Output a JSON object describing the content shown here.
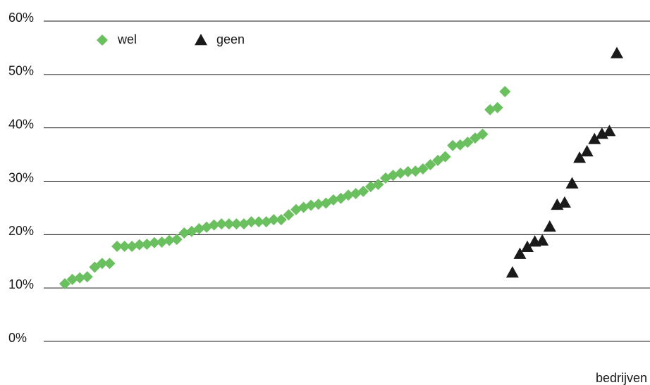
{
  "chart_data": {
    "type": "scatter",
    "x_label": "bedrijven",
    "ylim": [
      0,
      60
    ],
    "yticks": [
      {
        "value": 0,
        "label": "0%"
      },
      {
        "value": 10,
        "label": "10%"
      },
      {
        "value": 20,
        "label": "20%"
      },
      {
        "value": 30,
        "label": "30%"
      },
      {
        "value": 40,
        "label": "40%"
      },
      {
        "value": 50,
        "label": "50%"
      },
      {
        "value": 60,
        "label": "60%"
      }
    ],
    "grid": true,
    "legend": "top-left",
    "series": [
      {
        "name": "wel",
        "color": "#6abf5e",
        "marker": "diamond",
        "values": [
          10.8,
          11.6,
          11.9,
          12.1,
          13.9,
          14.6,
          14.6,
          17.8,
          17.8,
          17.8,
          18.1,
          18.2,
          18.5,
          18.6,
          18.9,
          19.1,
          20.3,
          20.6,
          21.1,
          21.4,
          21.8,
          22.0,
          22.0,
          22.0,
          22.0,
          22.4,
          22.4,
          22.4,
          22.8,
          22.8,
          23.7,
          24.7,
          25.1,
          25.5,
          25.7,
          25.9,
          26.5,
          26.8,
          27.4,
          27.7,
          28.1,
          29.0,
          29.4,
          30.6,
          31.1,
          31.5,
          31.8,
          31.9,
          32.3,
          33.1,
          33.9,
          34.6,
          36.7,
          36.8,
          37.3,
          38.1,
          38.8,
          43.4,
          43.8,
          46.8
        ]
      },
      {
        "name": "geen",
        "color": "#1a1a1a",
        "marker": "triangle",
        "values": [
          12.9,
          16.4,
          17.7,
          18.7,
          18.9,
          21.5,
          25.6,
          26.0,
          29.6,
          34.4,
          35.6,
          37.9,
          38.9,
          39.4,
          54.0
        ]
      }
    ]
  }
}
